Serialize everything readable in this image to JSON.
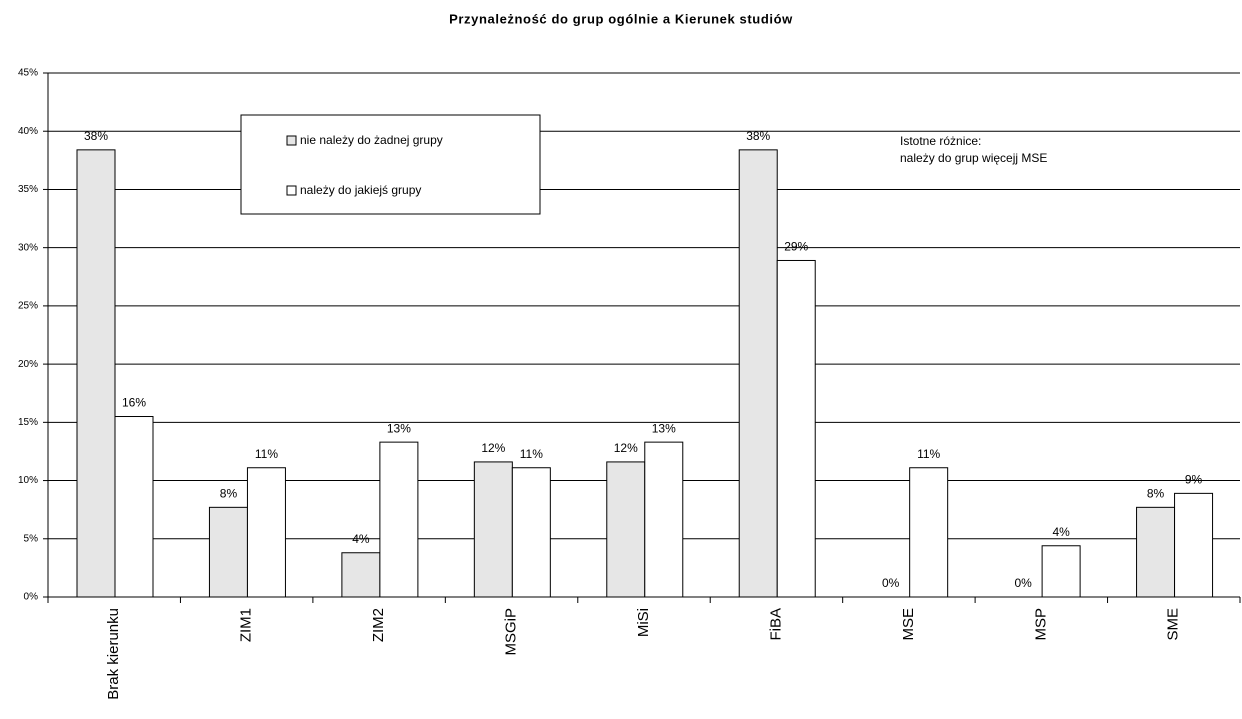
{
  "chart_data": {
    "type": "bar",
    "title": "Przynależność do grup ogólnie a Kierunek studiów",
    "categories": [
      "Brak kierunku",
      "ZIM1",
      "ZIM2",
      "MSGiP",
      "MiSi",
      "FiBA",
      "MSE",
      "MSP",
      "SME"
    ],
    "series": [
      {
        "name": "nie należy do żadnej grupy",
        "color": "#e6e6e6",
        "values": [
          38.4,
          7.7,
          3.8,
          11.6,
          11.6,
          38.4,
          0,
          0,
          7.7
        ],
        "value_labels": [
          "38%",
          "8%",
          "4%",
          "12%",
          "12%",
          "38%",
          "0%",
          "0%",
          "8%"
        ]
      },
      {
        "name": "należy do jakiejś grupy",
        "color": "#ffffff",
        "values": [
          15.5,
          11.1,
          13.3,
          11.1,
          13.3,
          28.9,
          11.1,
          4.4,
          8.9
        ],
        "value_labels": [
          "16%",
          "11%",
          "13%",
          "11%",
          "13%",
          "29%",
          "11%",
          "4%",
          "9%"
        ]
      }
    ],
    "ylim": [
      0,
      45
    ],
    "yticks": [
      {
        "value": 0,
        "label": "0%"
      },
      {
        "value": 5,
        "label": "5%"
      },
      {
        "value": 10,
        "label": "10%"
      },
      {
        "value": 15,
        "label": "15%"
      },
      {
        "value": 20,
        "label": "20%"
      },
      {
        "value": 25,
        "label": "25%"
      },
      {
        "value": 30,
        "label": "30%"
      },
      {
        "value": 35,
        "label": "35%"
      },
      {
        "value": 40,
        "label": "40%"
      },
      {
        "value": 45,
        "label": "45%"
      }
    ],
    "grid": true,
    "annotations": [
      "Istotne różnice:",
      "należy do grup więcejj MSE"
    ]
  }
}
